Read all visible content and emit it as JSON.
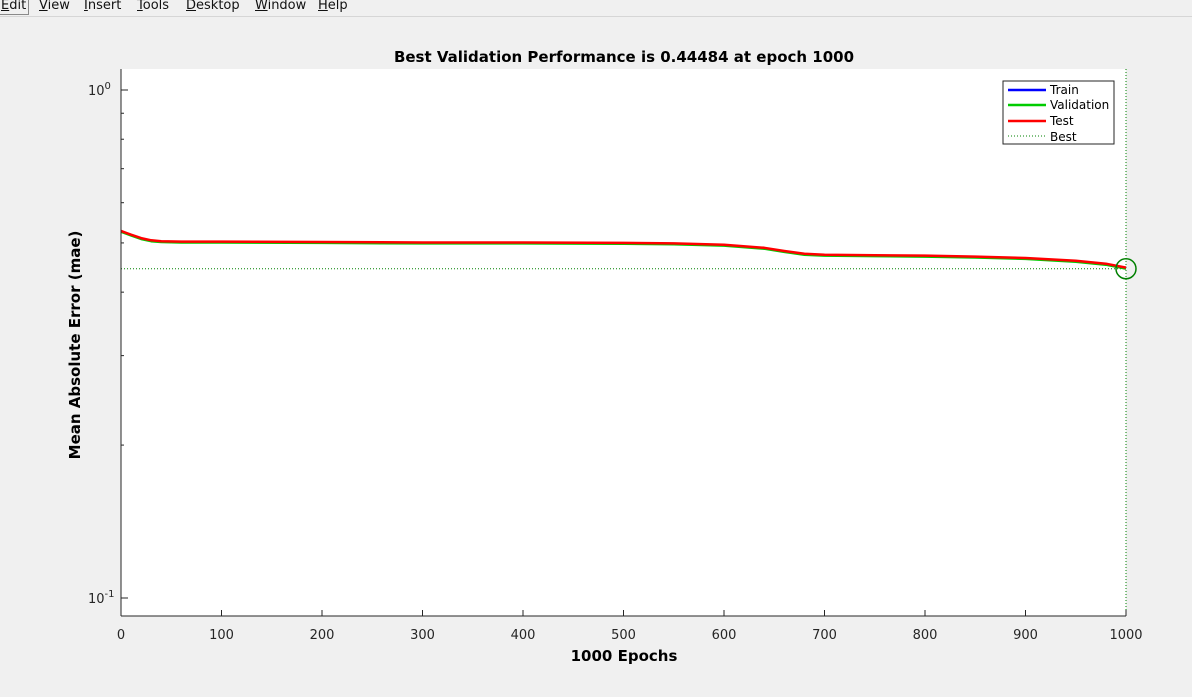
{
  "menubar": {
    "items": [
      {
        "label": "Edit",
        "mnemonic": "E",
        "rest": "dit",
        "active": true
      },
      {
        "label": "View",
        "mnemonic": "V",
        "rest": "iew",
        "active": false
      },
      {
        "label": "Insert",
        "mnemonic": "I",
        "rest": "nsert",
        "active": false
      },
      {
        "label": "Tools",
        "mnemonic": "T",
        "rest": "ools",
        "active": false
      },
      {
        "label": "Desktop",
        "mnemonic": "D",
        "rest": "esktop",
        "active": false
      },
      {
        "label": "Window",
        "mnemonic": "W",
        "rest": "indow",
        "active": false
      },
      {
        "label": "Help",
        "mnemonic": "H",
        "rest": "elp",
        "active": false
      }
    ]
  },
  "chart_data": {
    "type": "line",
    "title": "Best Validation Performance is 0.44484 at epoch 1000",
    "xlabel": "1000 Epochs",
    "ylabel": "Mean Absolute Error  (mae)",
    "xlim": [
      0,
      1000
    ],
    "ylim": [
      0.1,
      1
    ],
    "yscale": "log",
    "grid": false,
    "legend_position": "top-right",
    "xticks": [
      0,
      100,
      200,
      300,
      400,
      500,
      600,
      700,
      800,
      900,
      1000
    ],
    "yticks": [
      {
        "value": 1,
        "base": "10",
        "exp": "0"
      },
      {
        "value": 0.1,
        "base": "10",
        "exp": "-1"
      }
    ],
    "x": [
      0,
      10,
      20,
      30,
      40,
      60,
      100,
      200,
      300,
      400,
      500,
      550,
      600,
      640,
      660,
      680,
      700,
      750,
      800,
      850,
      900,
      950,
      980,
      1000
    ],
    "series": [
      {
        "name": "Train",
        "color": "#0000ff",
        "values": [
          0.527,
          0.518,
          0.51,
          0.505,
          0.503,
          0.502,
          0.502,
          0.501,
          0.5,
          0.5,
          0.499,
          0.498,
          0.495,
          0.488,
          0.481,
          0.475,
          0.473,
          0.472,
          0.471,
          0.469,
          0.466,
          0.46,
          0.454,
          0.446
        ]
      },
      {
        "name": "Validation",
        "color": "#00cc00",
        "values": [
          0.526,
          0.517,
          0.509,
          0.504,
          0.502,
          0.501,
          0.501,
          0.5,
          0.499,
          0.499,
          0.498,
          0.497,
          0.494,
          0.487,
          0.48,
          0.474,
          0.472,
          0.471,
          0.47,
          0.468,
          0.465,
          0.459,
          0.453,
          0.44484
        ]
      },
      {
        "name": "Test",
        "color": "#ff0000",
        "values": [
          0.528,
          0.519,
          0.511,
          0.506,
          0.504,
          0.503,
          0.503,
          0.502,
          0.501,
          0.501,
          0.5,
          0.499,
          0.496,
          0.489,
          0.482,
          0.476,
          0.474,
          0.473,
          0.472,
          0.47,
          0.467,
          0.461,
          0.455,
          0.447
        ]
      }
    ],
    "best": {
      "name": "Best",
      "epoch": 1000,
      "value": 0.44484,
      "color": "#008000"
    }
  }
}
